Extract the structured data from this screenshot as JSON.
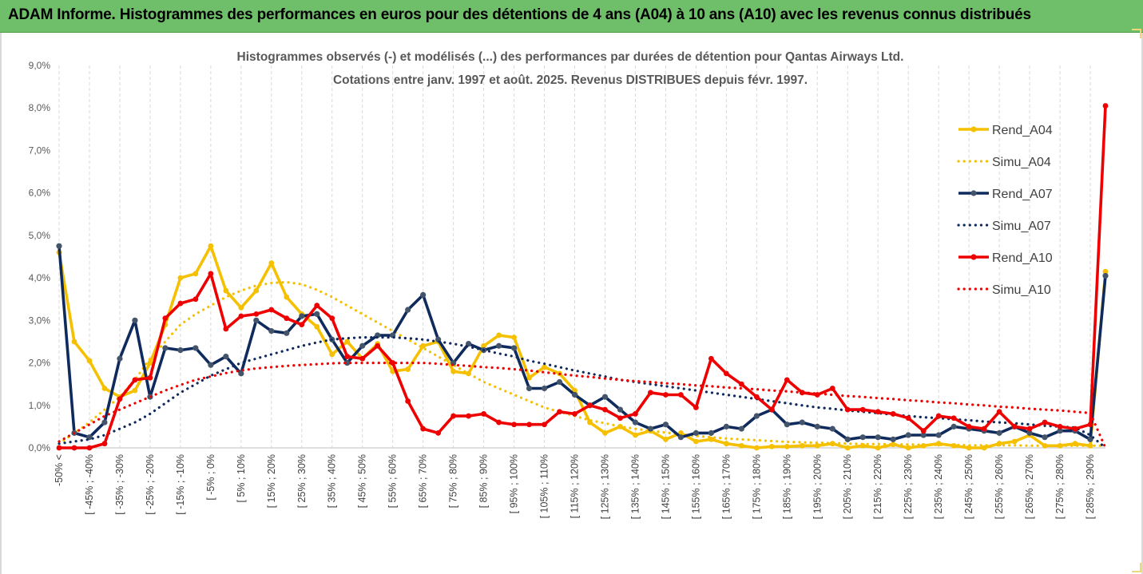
{
  "banner": {
    "title": "ADAM Informe. Histogrammes des performances en euros pour des détentions de 4 ans (A04) à 10 ans (A10) avec les revenus connus distribués",
    "color": "#6fbf6a"
  },
  "chart_data": {
    "type": "line",
    "title_lines": [
      "Histogrammes observés (-) et modélisés (...) des performances par durées de détention pour Qantas Airways Ltd.",
      "Cotations entre janv. 1997 et août. 2025. Revenus DISTRIBUES depuis févr. 1997."
    ],
    "y_axis": {
      "min": 0,
      "max": 9,
      "unit": "%",
      "ticks": [
        "0,0%",
        "1,0%",
        "2,0%",
        "3,0%",
        "4,0%",
        "5,0%",
        "6,0%",
        "7,0%",
        "8,0%",
        "9,0%"
      ]
    },
    "grid": "vertical dashed",
    "legend_position": "right",
    "x_count": 70,
    "x_tick_labels": [
      "-50% <",
      "[ -45% ; -40%",
      "[ -35% ; -30%",
      "[ -25% ; -20%",
      "[ -15% ; -10%",
      "[ -5% ; 0%",
      "[ 5% ; 10%",
      "[ 15% ; 20%",
      "[ 25% ; 30%",
      "[ 35% ; 40%",
      "[ 45% ; 50%",
      "[ 55% ; 60%",
      "[ 65% ; 70%",
      "[ 75% ; 80%",
      "[ 85% ; 90%",
      "[ 95% ; 100%",
      "[ 105% ; 110%",
      "[ 115% ; 120%",
      "[ 125% ; 130%",
      "[ 135% ; 140%",
      "[ 145% ; 150%",
      "[ 155% ; 160%",
      "[ 165% ; 170%",
      "[ 175% ; 180%",
      "[ 185% ; 190%",
      "[ 195% ; 200%",
      "[ 205% ; 210%",
      "[ 215% ; 220%",
      "[ 225% ; 230%",
      "[ 235% ; 240%",
      "[ 245% ; 250%",
      "[ 255% ; 260%",
      "[ 265% ; 270%",
      "[ 275% ; 280%",
      "[ 285% ; 290%"
    ],
    "series": [
      {
        "name": "Rend_A04",
        "style": "solid",
        "color": "#f5c000",
        "values": [
          4.6,
          2.5,
          2.05,
          1.4,
          1.2,
          1.35,
          2.0,
          2.9,
          4.0,
          4.1,
          4.75,
          3.7,
          3.3,
          3.7,
          4.35,
          3.55,
          3.15,
          2.85,
          2.2,
          2.5,
          2.1,
          2.45,
          1.8,
          1.85,
          2.4,
          2.5,
          1.8,
          1.75,
          2.4,
          2.65,
          2.6,
          1.65,
          1.9,
          1.75,
          1.35,
          0.6,
          0.35,
          0.5,
          0.3,
          0.4,
          0.2,
          0.35,
          0.15,
          0.2,
          0.1,
          0.05,
          0.0,
          0.03,
          0.03,
          0.05,
          0.05,
          0.1,
          0.0,
          0.05,
          0.0,
          0.08,
          0.0,
          0.05,
          0.1,
          0.05,
          0.0,
          0.0,
          0.1,
          0.15,
          0.3,
          0.05,
          0.05,
          0.1,
          0.05,
          4.15
        ]
      },
      {
        "name": "Simu_A04",
        "style": "dotted",
        "color": "#f5c000",
        "values": [
          0.1,
          0.35,
          0.6,
          0.9,
          1.2,
          1.6,
          2.1,
          2.5,
          2.9,
          3.15,
          3.35,
          3.55,
          3.7,
          3.82,
          3.88,
          3.9,
          3.85,
          3.72,
          3.55,
          3.35,
          3.15,
          2.95,
          2.75,
          2.55,
          2.35,
          2.15,
          1.95,
          1.75,
          1.55,
          1.4,
          1.25,
          1.1,
          0.95,
          0.85,
          0.75,
          0.65,
          0.58,
          0.5,
          0.45,
          0.4,
          0.36,
          0.32,
          0.28,
          0.25,
          0.22,
          0.2,
          0.18,
          0.16,
          0.14,
          0.13,
          0.12,
          0.11,
          0.1,
          0.09,
          0.09,
          0.08,
          0.08,
          0.07,
          0.07,
          0.07,
          0.06,
          0.06,
          0.06,
          0.06,
          0.05,
          0.05,
          0.05,
          0.05,
          0.05,
          0.05
        ]
      },
      {
        "name": "Rend_A07",
        "style": "solid",
        "color": "#0f2a5c",
        "values": [
          4.75,
          0.35,
          0.25,
          0.6,
          2.1,
          3.0,
          1.2,
          2.35,
          2.3,
          2.35,
          1.95,
          2.15,
          1.75,
          3.0,
          2.75,
          2.7,
          3.1,
          3.15,
          2.55,
          2.0,
          2.4,
          2.65,
          2.65,
          3.25,
          3.6,
          2.55,
          2.0,
          2.45,
          2.3,
          2.4,
          2.35,
          1.4,
          1.4,
          1.55,
          1.25,
          1.0,
          1.2,
          0.9,
          0.6,
          0.45,
          0.55,
          0.25,
          0.35,
          0.35,
          0.5,
          0.45,
          0.75,
          0.9,
          0.55,
          0.6,
          0.5,
          0.45,
          0.2,
          0.25,
          0.25,
          0.2,
          0.3,
          0.3,
          0.3,
          0.5,
          0.45,
          0.4,
          0.35,
          0.5,
          0.35,
          0.25,
          0.4,
          0.4,
          0.2,
          4.05
        ]
      },
      {
        "name": "Simu_A07",
        "style": "dotted",
        "color": "#0f2a5c",
        "values": [
          0.1,
          0.15,
          0.2,
          0.3,
          0.45,
          0.6,
          0.8,
          1.05,
          1.3,
          1.5,
          1.7,
          1.85,
          2.0,
          2.1,
          2.2,
          2.3,
          2.4,
          2.48,
          2.55,
          2.58,
          2.6,
          2.6,
          2.6,
          2.58,
          2.55,
          2.5,
          2.45,
          2.38,
          2.3,
          2.22,
          2.15,
          2.05,
          1.98,
          1.9,
          1.82,
          1.75,
          1.68,
          1.6,
          1.55,
          1.5,
          1.45,
          1.4,
          1.35,
          1.3,
          1.25,
          1.2,
          1.15,
          1.1,
          1.05,
          1.0,
          0.95,
          0.92,
          0.88,
          0.85,
          0.82,
          0.78,
          0.75,
          0.72,
          0.7,
          0.67,
          0.65,
          0.62,
          0.6,
          0.58,
          0.55,
          0.52,
          0.5,
          0.48,
          0.3,
          0.0
        ]
      },
      {
        "name": "Rend_A10",
        "style": "solid",
        "color": "#ee0000",
        "values": [
          0.0,
          0.0,
          0.0,
          0.1,
          1.15,
          1.6,
          1.65,
          3.05,
          3.4,
          3.5,
          4.1,
          2.8,
          3.1,
          3.15,
          3.25,
          3.05,
          2.9,
          3.35,
          3.05,
          2.15,
          2.1,
          2.4,
          2.0,
          1.1,
          0.45,
          0.35,
          0.75,
          0.75,
          0.8,
          0.6,
          0.55,
          0.55,
          0.55,
          0.85,
          0.8,
          1.0,
          0.9,
          0.7,
          0.8,
          1.3,
          1.25,
          1.25,
          0.95,
          2.1,
          1.75,
          1.5,
          1.2,
          0.9,
          1.6,
          1.3,
          1.25,
          1.4,
          0.9,
          0.9,
          0.85,
          0.8,
          0.7,
          0.4,
          0.75,
          0.7,
          0.5,
          0.45,
          0.85,
          0.5,
          0.45,
          0.6,
          0.5,
          0.45,
          0.55,
          8.05
        ]
      },
      {
        "name": "Simu_A10",
        "style": "dotted",
        "color": "#ee0000",
        "values": [
          0.15,
          0.35,
          0.55,
          0.75,
          0.9,
          1.05,
          1.2,
          1.35,
          1.48,
          1.6,
          1.68,
          1.76,
          1.82,
          1.87,
          1.9,
          1.93,
          1.95,
          1.97,
          1.99,
          2.0,
          2.0,
          2.0,
          2.0,
          2.0,
          2.0,
          1.98,
          1.95,
          1.93,
          1.9,
          1.88,
          1.85,
          1.82,
          1.78,
          1.74,
          1.7,
          1.67,
          1.63,
          1.6,
          1.57,
          1.55,
          1.52,
          1.5,
          1.47,
          1.45,
          1.42,
          1.4,
          1.38,
          1.35,
          1.33,
          1.3,
          1.28,
          1.25,
          1.22,
          1.2,
          1.17,
          1.15,
          1.12,
          1.1,
          1.07,
          1.05,
          1.02,
          1.0,
          0.97,
          0.95,
          0.92,
          0.9,
          0.88,
          0.85,
          0.82,
          0.0
        ]
      }
    ]
  }
}
